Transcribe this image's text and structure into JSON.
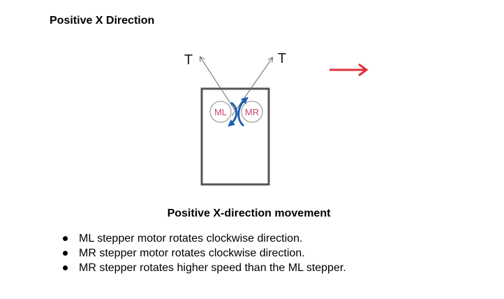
{
  "heading": "Positive X Direction",
  "diagram": {
    "tension_label_left": "T",
    "tension_label_right": "T",
    "motor_left_label": "ML",
    "motor_right_label": "MR",
    "colors": {
      "frame": "#555555",
      "motor_text": "#c0486a",
      "rotation_arrow": "#1f5fb0",
      "direction_arrow": "#e0303a",
      "tension_line": "#666666"
    }
  },
  "caption": "Positive X-direction movement",
  "bullets": [
    "ML stepper motor rotates clockwise direction.",
    "MR stepper motor rotates clockwise direction.",
    "MR stepper rotates higher speed than the ML stepper."
  ]
}
